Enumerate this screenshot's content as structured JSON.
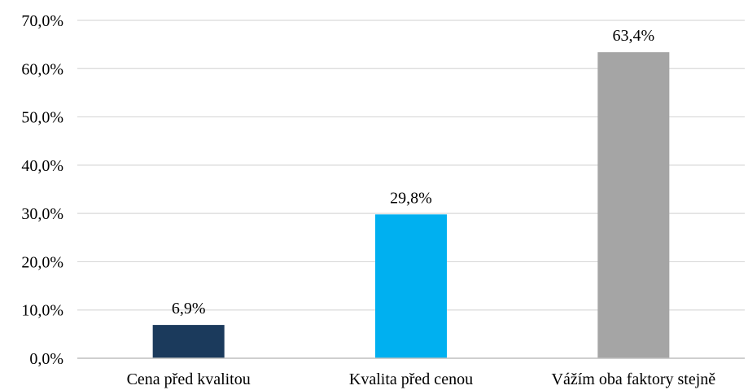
{
  "chart_data": {
    "type": "bar",
    "categories": [
      "Cena před kvalitou",
      "Kvalita před cenou",
      "Vážím oba faktory stejně"
    ],
    "values": [
      6.9,
      29.8,
      63.4
    ],
    "data_labels": [
      "6,9%",
      "29,8%",
      "63,4%"
    ],
    "colors": [
      "#1b3a5c",
      "#00b0f0",
      "#a5a5a5"
    ],
    "ylim": [
      0,
      70
    ],
    "yticks": [
      0,
      10,
      20,
      30,
      40,
      50,
      60,
      70
    ],
    "ytick_labels": [
      "0,0%",
      "10,0%",
      "20,0%",
      "30,0%",
      "40,0%",
      "50,0%",
      "60,0%",
      "70,0%"
    ],
    "grid": true,
    "legend": false,
    "title": "",
    "xlabel": "",
    "ylabel": ""
  }
}
